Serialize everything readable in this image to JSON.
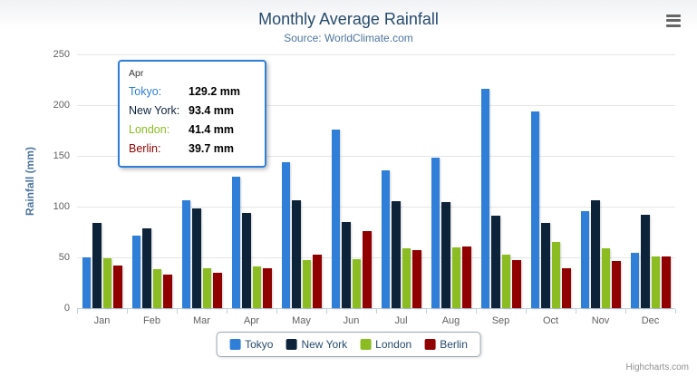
{
  "chart_data": {
    "type": "bar",
    "title": "Monthly Average Rainfall",
    "subtitle": "Source: WorldClimate.com",
    "ylabel": "Rainfall (mm)",
    "xlabel": "",
    "ylim": [
      0,
      250
    ],
    "yticks": [
      0,
      50,
      100,
      150,
      200,
      250
    ],
    "grid": true,
    "legend_position": "bottom",
    "categories": [
      "Jan",
      "Feb",
      "Mar",
      "Apr",
      "May",
      "Jun",
      "Jul",
      "Aug",
      "Sep",
      "Oct",
      "Nov",
      "Dec"
    ],
    "series": [
      {
        "name": "Tokyo",
        "color": "#2f7ed8",
        "values": [
          49.9,
          71.5,
          106.4,
          129.2,
          144.0,
          176.0,
          135.6,
          148.5,
          216.4,
          194.1,
          95.6,
          54.4
        ]
      },
      {
        "name": "New York",
        "color": "#0d233a",
        "values": [
          83.6,
          78.8,
          98.5,
          93.4,
          106.0,
          84.5,
          105.0,
          104.3,
          91.2,
          83.5,
          106.6,
          92.3
        ]
      },
      {
        "name": "London",
        "color": "#8bbc21",
        "values": [
          48.9,
          38.8,
          39.3,
          41.4,
          47.0,
          48.3,
          59.0,
          59.6,
          52.4,
          65.2,
          59.3,
          51.2
        ]
      },
      {
        "name": "Berlin",
        "color": "#910000",
        "values": [
          42.4,
          33.2,
          34.5,
          39.7,
          52.6,
          75.5,
          57.4,
          60.4,
          47.6,
          39.1,
          46.8,
          51.1
        ]
      }
    ]
  },
  "tooltip": {
    "category": "Apr",
    "border_color": "#2f7ed8",
    "rows": [
      {
        "name": "Tokyo",
        "value": "129.2 mm"
      },
      {
        "name": "New York",
        "value": "93.4 mm"
      },
      {
        "name": "London",
        "value": "41.4 mm"
      },
      {
        "name": "Berlin",
        "value": "39.7 mm"
      }
    ]
  },
  "icons": {
    "export_menu": "hamburger-menu-icon"
  },
  "credits": "Highcharts.com"
}
